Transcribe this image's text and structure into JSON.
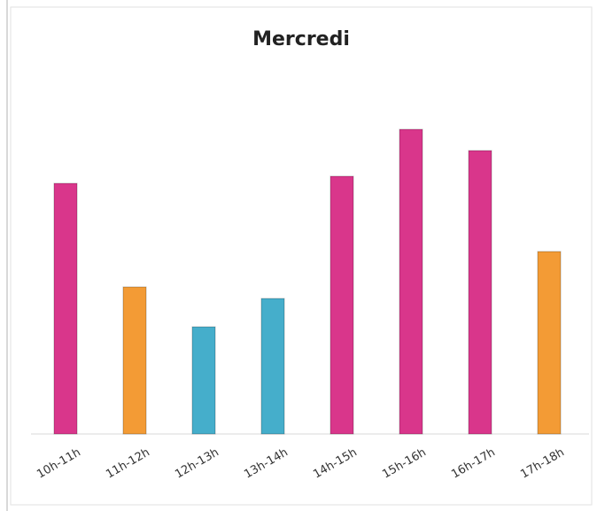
{
  "chart_data": {
    "type": "bar",
    "title": "Mercredi",
    "categories": [
      "10h-11h",
      "11h-12h",
      "12h-13h",
      "13h-14h",
      "14h-15h",
      "15h-16h",
      "16h-17h",
      "17h-18h"
    ],
    "values": [
      283,
      166,
      121,
      153,
      291,
      344,
      320,
      206
    ],
    "colors": [
      "#d9368b",
      "#f39b35",
      "#45aecb",
      "#45aecb",
      "#d9368b",
      "#d9368b",
      "#d9368b",
      "#f39b35"
    ],
    "ylim": [
      0,
      380
    ]
  }
}
